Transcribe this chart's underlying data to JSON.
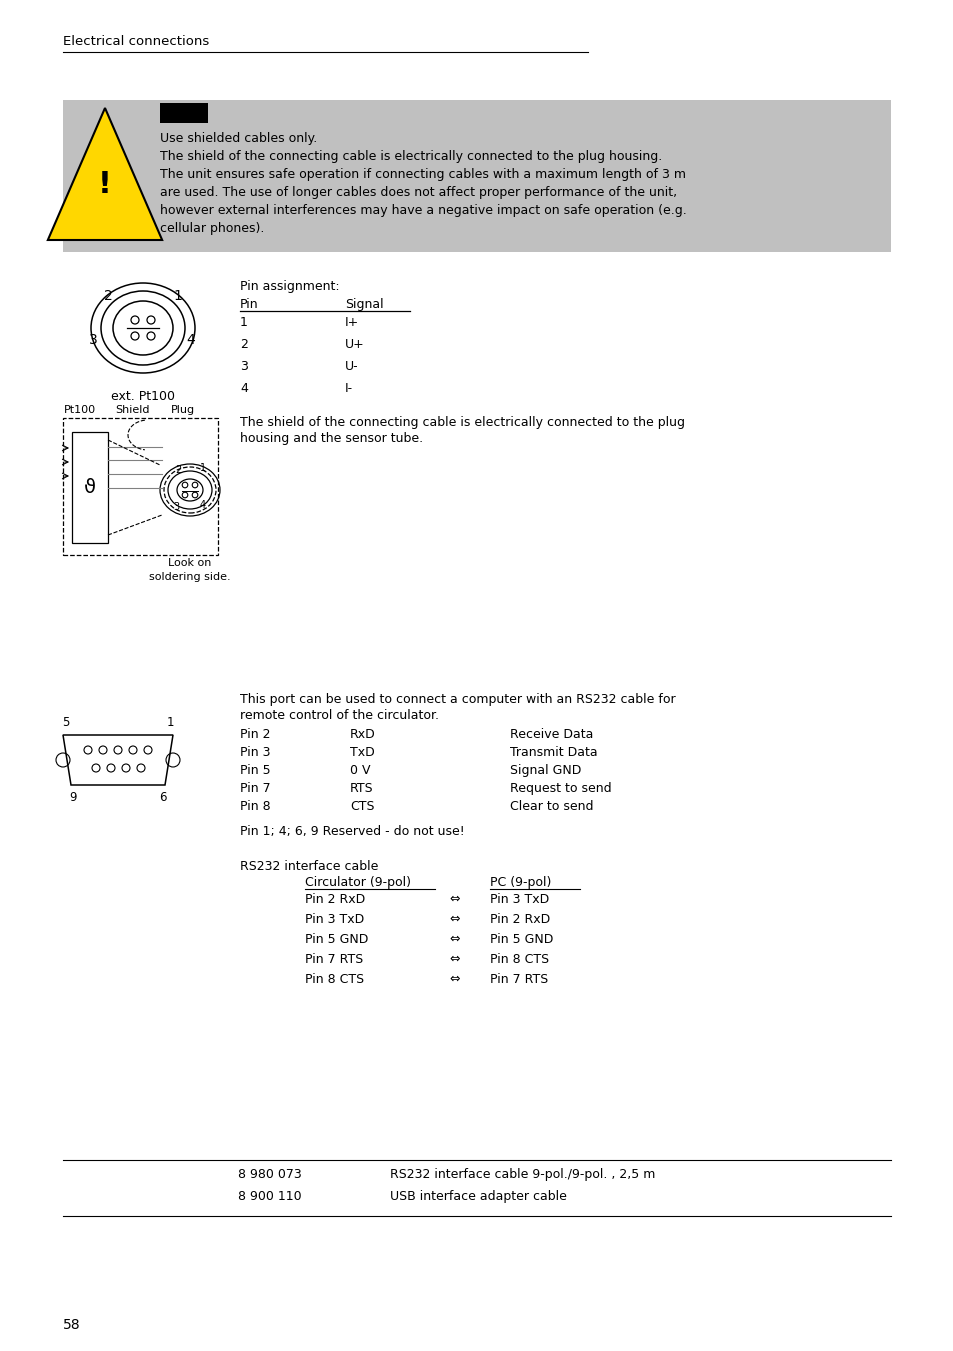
{
  "page_title": "Electrical connections",
  "bg_color": "#ffffff",
  "gray_box_color": "#c0c0c0",
  "warning_text": [
    "Use shielded cables only.",
    "The shield of the connecting cable is electrically connected to the plug housing.",
    "The unit ensures safe operation if connecting cables with a maximum length of 3 m",
    "are used. The use of longer cables does not affect proper performance of the unit,",
    "however external interferences may have a negative impact on safe operation (e.g.",
    "cellular phones)."
  ],
  "pin_assignment_title": "Pin assignment:",
  "pin_col_header": [
    "Pin",
    "Signal"
  ],
  "pin_rows": [
    [
      "1",
      "I+"
    ],
    [
      "2",
      "U+"
    ],
    [
      "3",
      "U-"
    ],
    [
      "4",
      "I-"
    ]
  ],
  "shield_text_line1": "The shield of the connecting cable is electrically connected to the plug",
  "shield_text_line2": "housing and the sensor tube.",
  "rs232_intro_line1": "This port can be used to connect a computer with an RS232 cable for",
  "rs232_intro_line2": "remote control of the circulator.",
  "rs232_pins": [
    [
      "Pin 2",
      "RxD",
      "Receive Data"
    ],
    [
      "Pin 3",
      "TxD",
      "Transmit Data"
    ],
    [
      "Pin 5",
      "0 V",
      "Signal GND"
    ],
    [
      "Pin 7",
      "RTS",
      "Request to send"
    ],
    [
      "Pin 8",
      "CTS",
      "Clear to send"
    ]
  ],
  "reserved_text": "Pin 1; 4; 6, 9 Reserved - do not use!",
  "cable_title": "RS232 interface cable",
  "cable_col1": "Circulator (9-pol)",
  "cable_col2": "PC (9-pol)",
  "cable_rows": [
    [
      "Pin 2 RxD",
      "Pin 3 TxD"
    ],
    [
      "Pin 3 TxD",
      "Pin 2 RxD"
    ],
    [
      "Pin 5 GND",
      "Pin 5 GND"
    ],
    [
      "Pin 7 RTS",
      "Pin 8 CTS"
    ],
    [
      "Pin 8 CTS",
      "Pin 7 RTS"
    ]
  ],
  "order_rows": [
    [
      "8 980 073",
      "RS232 interface cable 9-pol./9-pol. , 2,5 m"
    ],
    [
      "8 900 110",
      "USB interface adapter cable"
    ]
  ],
  "page_number": "58"
}
